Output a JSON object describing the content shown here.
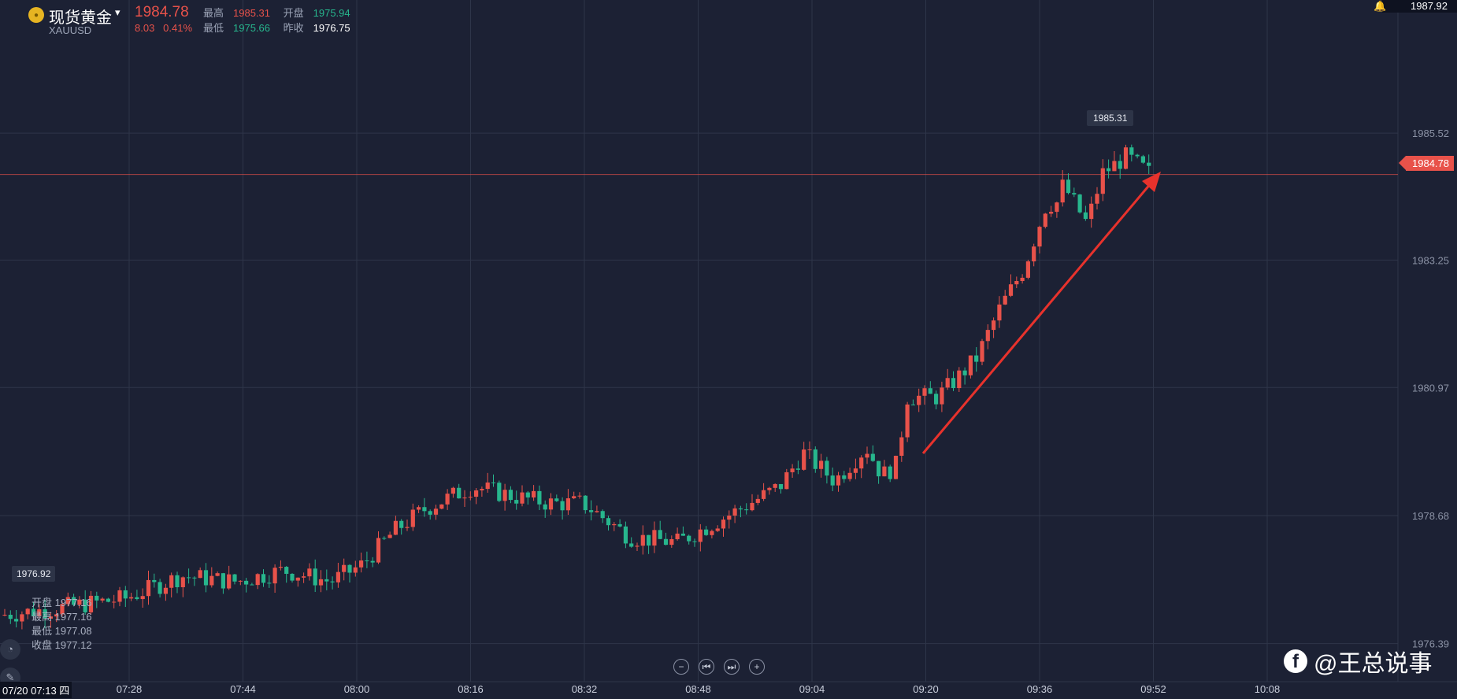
{
  "header": {
    "title": "现货黄金",
    "symbol": "XAUUSD",
    "price": "1984.78",
    "change": "8.03",
    "change_pct": "0.41%",
    "high_label": "最高",
    "high_value": "1985.31",
    "open_label": "开盘",
    "open_value": "1975.94",
    "low_label": "最低",
    "low_value": "1975.66",
    "prev_close_label": "昨收",
    "prev_close_value": "1976.75"
  },
  "top_right_value": "1987.92",
  "current_price_tag": "1984.78",
  "high_marker": "1985.31",
  "low_marker": "1976.92",
  "ohlc_panel": {
    "open": "开盘 1977.16",
    "high": "最高 1977.16",
    "low": "最低 1977.08",
    "close": "收盘 1977.12"
  },
  "controls": {
    "zoom_out": "−",
    "prev": "⏮",
    "next": "⏭",
    "zoom_in": "+"
  },
  "watermark": "@王总说事",
  "date_label": "07/20 07:13 四",
  "colors": {
    "up": "#e8524a",
    "down": "#27b68d",
    "background": "#1c2134",
    "arrow": "#e8322c"
  },
  "chart_data": {
    "type": "candlestick",
    "y_ticks": [
      "1985.52",
      "1983.25",
      "1980.97",
      "1978.68",
      "1976.39"
    ],
    "x_ticks": [
      "07:28",
      "07:44",
      "08:00",
      "08:16",
      "08:32",
      "08:48",
      "09:04",
      "09:20",
      "09:36",
      "09:52",
      "10:08"
    ],
    "ylim": [
      1975.4,
      1987.9
    ],
    "grid": true,
    "annotation": "red arrow pointing up to latest price"
  }
}
